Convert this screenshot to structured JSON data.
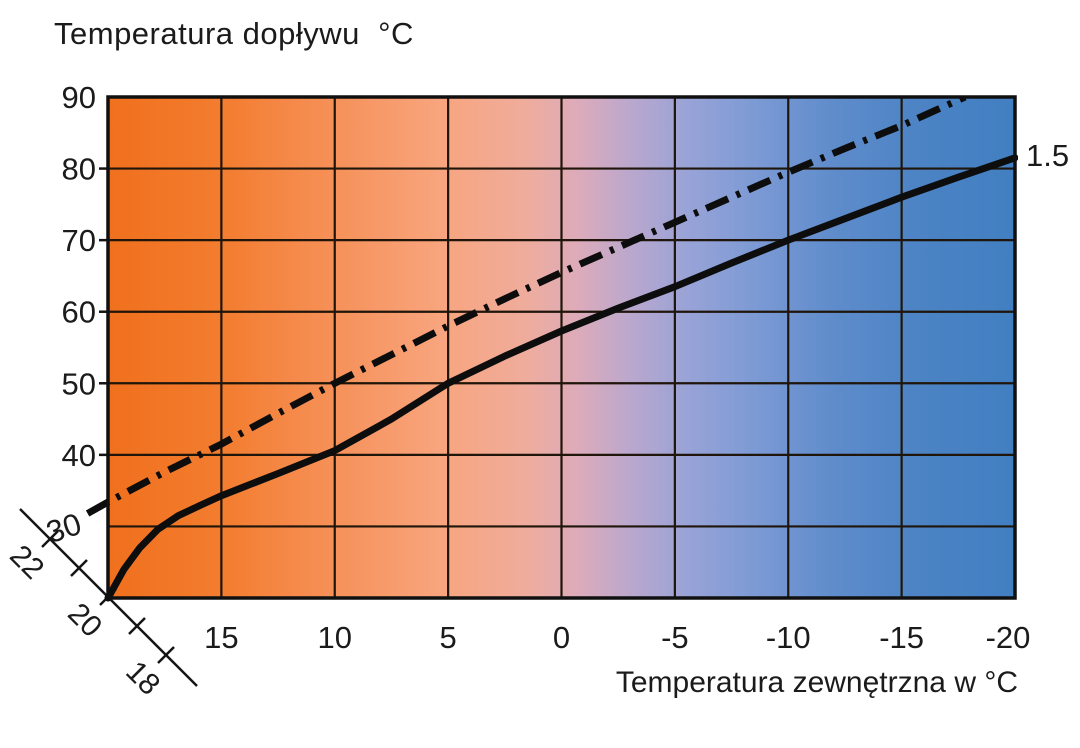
{
  "figure": {
    "title": "Temperatura dopływu  °C",
    "x_axis_title": "Temperatura zewnętrzna w °C",
    "curve_label": "1.5"
  },
  "chart_data": {
    "type": "line",
    "title": "Temperatura dopływu °C",
    "xlabel": "Temperatura zewnętrzna w °C",
    "ylabel": "Temperatura dopływu °C",
    "xlim": [
      20,
      -20
    ],
    "ylim": [
      20,
      90
    ],
    "x_ticks": [
      15,
      10,
      5,
      0,
      -5,
      -10,
      -15,
      -20
    ],
    "y_ticks": [
      90,
      80,
      70,
      60,
      50,
      40
    ],
    "y_tick_rotated": "30",
    "grid": true,
    "legend": "none",
    "room_temperature_scale": {
      "tick_values": [
        22,
        21,
        20,
        19,
        18
      ],
      "labels": [
        "22",
        "20",
        "18"
      ]
    },
    "series": [
      {
        "name": "supply-temperature-curve-solid",
        "style": "solid",
        "label": "1.5",
        "points": [
          [
            20,
            20
          ],
          [
            19.3,
            24
          ],
          [
            18.6,
            27
          ],
          [
            17.8,
            29.6
          ],
          [
            16.9,
            31.5
          ],
          [
            15.9,
            33
          ],
          [
            15,
            34.3
          ],
          [
            12.5,
            37.4
          ],
          [
            10,
            40.6
          ],
          [
            7.5,
            45
          ],
          [
            5,
            50
          ],
          [
            2.5,
            53.8
          ],
          [
            0,
            57.3
          ],
          [
            -2.5,
            60.5
          ],
          [
            -5,
            63.5
          ],
          [
            -7.5,
            66.8
          ],
          [
            -10,
            70
          ],
          [
            -12.5,
            73
          ],
          [
            -15,
            76
          ],
          [
            -17.5,
            78.8
          ],
          [
            -20,
            81.5
          ]
        ]
      },
      {
        "name": "upper-curve-dash-dot",
        "style": "dash-dot",
        "label": "",
        "points": [
          [
            20.9,
            31.8
          ],
          [
            20,
            33.4
          ],
          [
            17.5,
            37.6
          ],
          [
            15,
            41.5
          ],
          [
            12.5,
            45.8
          ],
          [
            10,
            50
          ],
          [
            7.5,
            54
          ],
          [
            5,
            58
          ],
          [
            2.5,
            61.8
          ],
          [
            0,
            65.5
          ],
          [
            -2.5,
            69
          ],
          [
            -5,
            72.5
          ],
          [
            -7.5,
            76
          ],
          [
            -10,
            79.5
          ],
          [
            -12.5,
            82.8
          ],
          [
            -15,
            86
          ],
          [
            -17.8,
            90
          ]
        ]
      }
    ],
    "background_gradient": [
      {
        "offset": 0.0,
        "color": "#F0701D"
      },
      {
        "offset": 0.13,
        "color": "#F37D30"
      },
      {
        "offset": 0.25,
        "color": "#F69159"
      },
      {
        "offset": 0.37,
        "color": "#F8A57F"
      },
      {
        "offset": 0.46,
        "color": "#EFAC9C"
      },
      {
        "offset": 0.52,
        "color": "#DCABBB"
      },
      {
        "offset": 0.58,
        "color": "#B8A7CE"
      },
      {
        "offset": 0.64,
        "color": "#98A3D7"
      },
      {
        "offset": 0.72,
        "color": "#7A99D4"
      },
      {
        "offset": 0.8,
        "color": "#5F8CCB"
      },
      {
        "offset": 0.9,
        "color": "#4B83C4"
      },
      {
        "offset": 1.0,
        "color": "#417FC2"
      }
    ],
    "curve_color": "#0d0d0d",
    "grid_color": "#1f150a",
    "border_color": "#101010",
    "text_color": "#1b1b1b"
  }
}
